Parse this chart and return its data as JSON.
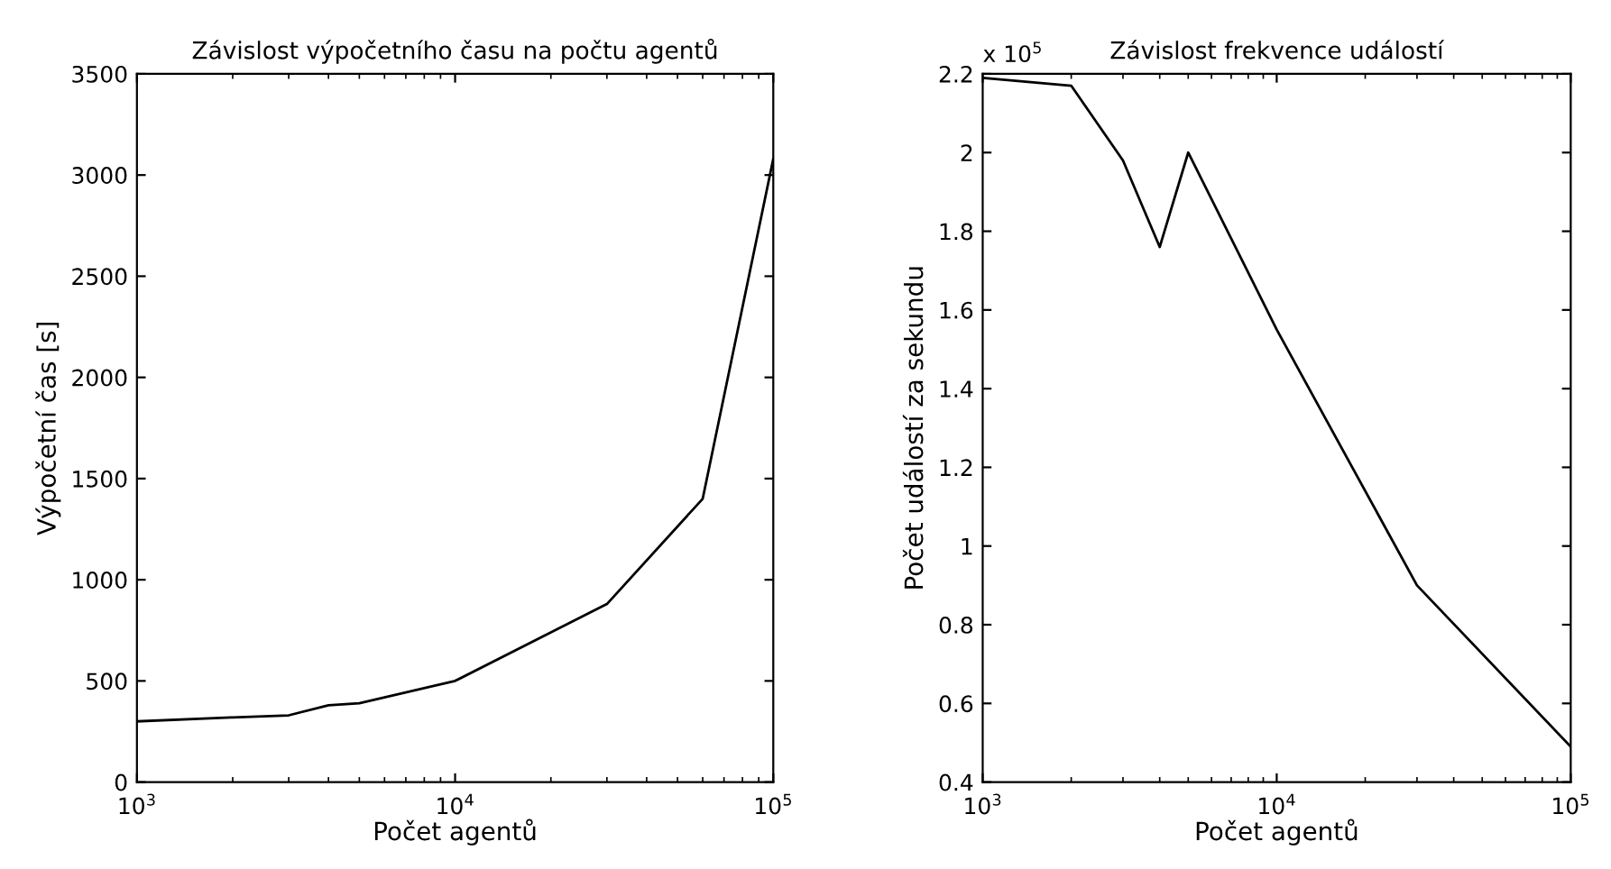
{
  "chart_data": [
    {
      "type": "line",
      "title": "Závislost výpočetního času na počtu agentů",
      "xlabel": "Počet agentů",
      "ylabel": "Výpočetní čas [s]",
      "log": "x",
      "x": [
        1000,
        2000,
        3000,
        4000,
        5000,
        10000,
        20000,
        30000,
        60000,
        100000
      ],
      "series": [
        {
          "color": "#000000",
          "values": [
            300,
            320,
            330,
            380,
            390,
            500,
            740,
            880,
            1400,
            3080
          ]
        }
      ],
      "xlim": [
        1000,
        100000
      ],
      "xticks": [
        {
          "value": 1000,
          "label": "10$^{3}$"
        },
        {
          "value": 10000,
          "label": "10$^{4}$"
        },
        {
          "value": 100000,
          "label": "10$^{5}$"
        }
      ],
      "ylim": [
        0,
        3500
      ],
      "yticks": [
        0,
        500,
        1000,
        1500,
        2000,
        2500,
        3000,
        3500
      ],
      "grid": false,
      "legend": false
    },
    {
      "type": "line",
      "title": "Závislost frekvence událostí",
      "xlabel": "Počet agentů",
      "ylabel": "Počet událostí za sekundu",
      "log": "x",
      "annotations": [
        "x 10$^{5}$"
      ],
      "x": [
        1000,
        2000,
        3000,
        4000,
        5000,
        10000,
        30000,
        100000
      ],
      "series": [
        {
          "color": "#000000",
          "values": [
            2.19,
            2.17,
            1.98,
            1.76,
            2.0,
            1.55,
            0.9,
            0.49
          ]
        }
      ],
      "xlim": [
        1000,
        100000
      ],
      "xticks": [
        {
          "value": 1000,
          "label": "10$^{3}$"
        },
        {
          "value": 10000,
          "label": "10$^{4}$"
        },
        {
          "value": 100000,
          "label": "10$^{5}$"
        }
      ],
      "ylim": [
        0.4,
        2.2
      ],
      "yticks": [
        0.4,
        0.6,
        0.8,
        1,
        1.2,
        1.4,
        1.6,
        1.8,
        2,
        2.2
      ],
      "grid": false,
      "legend": false
    }
  ]
}
